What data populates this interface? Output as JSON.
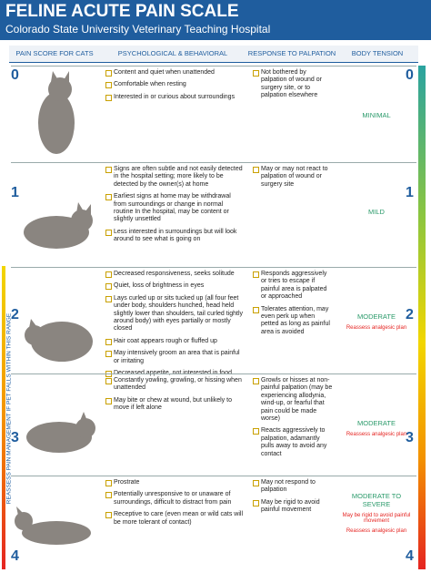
{
  "header": {
    "title": "FELINE ACUTE PAIN SCALE",
    "subtitle": "Colorado State University Veterinary Teaching Hospital"
  },
  "columns": [
    "PAIN SCORE FOR CATS",
    "PSYCHOLOGICAL & BEHAVIORAL",
    "RESPONSE TO PALPATION",
    "BODY TENSION"
  ],
  "side_note": "REASSESS PAIN MANAGEMENT IF PET FALLS WITHIN THIS RANGE",
  "rows": [
    {
      "score": 0,
      "behavioral": [
        "Content and quiet when unattended",
        "Comfortable when resting",
        "Interested in or curious about surroundings"
      ],
      "palpation": [
        "Not bothered by palpation of wound or surgery site, or to palpation elsewhere"
      ],
      "tension": [
        "MINIMAL"
      ]
    },
    {
      "score": 1,
      "behavioral": [
        "Signs are often subtle and not easily detected in the hospital setting; more likely to be detected by the owner(s) at home",
        "Earliest signs at home may be withdrawal from surroundings or change in normal routine In the hospital, may be content or slightly unsettled",
        "Less interested in surroundings but will look around to see what is going on"
      ],
      "palpation": [
        "May or may not react to palpation of wound or surgery site"
      ],
      "tension": [
        "MILD"
      ]
    },
    {
      "score": 2,
      "behavioral": [
        "Decreased responsiveness, seeks solitude",
        "Quiet, loss of brightness in eyes",
        "Lays curled up or sits tucked up (all four feet under body, shoulders hunched, head held slightly lower than shoulders, tail curled tightly around body) with eyes partially or mostly closed",
        "Hair coat appears rough or fluffed up",
        "May intensively groom an area that is painful or irritating",
        "Decreased appetite, not interested in food"
      ],
      "palpation": [
        "Responds aggressively or tries to escape if painful area is palpated or approached",
        "Tolerates attention, may even perk up when petted as long as painful area is avoided"
      ],
      "tension": [
        "MODERATE",
        "Reassess analgesic plan"
      ]
    },
    {
      "score": 3,
      "behavioral": [
        "Constantly yowling, growling, or hissing when unattended",
        "May bite or chew at wound, but unlikely to move if left alone"
      ],
      "palpation": [
        "Growls or hisses at non-painful palpation (may be experiencing allodynia, wind-up, or fearful that pain could be made worse)",
        "Reacts aggressively to palpation, adamantly pulls away to avoid any contact"
      ],
      "tension": [
        "MODERATE",
        "Reassess analgesic plan"
      ]
    },
    {
      "score": 4,
      "behavioral": [
        "Prostrate",
        "Potentially unresponsive to or unaware of surroundings, difficult to distract from pain",
        "Receptive to care (even mean or wild cats will be more tolerant of contact)"
      ],
      "palpation": [
        "May not respond to palpation",
        "May be rigid to avoid painful movement"
      ],
      "tension": [
        "MODERATE TO SEVERE",
        "May be rigid to avoid painful movement",
        "Reassess analgesic plan"
      ]
    }
  ]
}
